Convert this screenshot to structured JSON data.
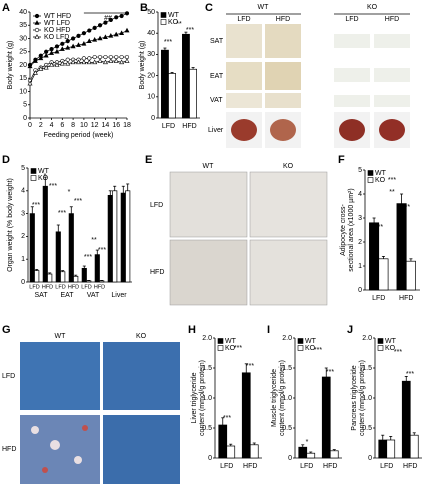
{
  "chart_data": [
    {
      "type": "line",
      "label": "A",
      "xlabel": "Feeding period (week)",
      "ylabel": "Body weight (g)",
      "x": [
        0,
        1,
        2,
        3,
        4,
        5,
        6,
        7,
        8,
        9,
        10,
        11,
        12,
        13,
        14,
        15,
        16,
        17,
        18
      ],
      "xlim": [
        0,
        18
      ],
      "xticks": [
        0,
        2,
        4,
        6,
        8,
        10,
        12,
        14,
        16,
        18
      ],
      "ylim": [
        0,
        40
      ],
      "yticks": [
        0,
        5,
        10,
        15,
        20,
        25,
        30,
        35,
        40
      ],
      "legend": "upper left",
      "annotations": [
        "##"
      ],
      "series": [
        {
          "name": "WT HFD",
          "color": "#000000",
          "marker": "circle",
          "values": [
            20,
            22,
            23.5,
            25,
            26,
            27,
            28,
            29,
            30,
            31,
            32,
            33,
            34,
            35,
            36,
            37,
            38,
            38.5,
            39.5
          ]
        },
        {
          "name": "WT LFD",
          "color": "#000000",
          "marker": "triangle",
          "values": [
            19.5,
            21.5,
            22.5,
            23.5,
            24.5,
            25,
            26,
            26.5,
            27,
            27.5,
            28,
            29,
            29.5,
            30,
            30.5,
            31,
            31.5,
            32,
            33
          ]
        },
        {
          "name": "KO HFD",
          "color": "#ffffff",
          "marker": "circle",
          "values": [
            14,
            18,
            19,
            20,
            21,
            21,
            21.5,
            22,
            22,
            22,
            22.5,
            22.5,
            23,
            23,
            23,
            23,
            23,
            23,
            23
          ]
        },
        {
          "name": "KO LFD",
          "color": "#ffffff",
          "marker": "triangle",
          "values": [
            13,
            17,
            18.5,
            19,
            20,
            20,
            20.5,
            20.5,
            21,
            21,
            21,
            21,
            21,
            21.5,
            21,
            21.5,
            21.5,
            21,
            21.5
          ]
        }
      ]
    },
    {
      "type": "bar",
      "label": "B",
      "ylabel": "Body weight (g)",
      "categories": [
        "LFD",
        "HFD"
      ],
      "ylim": [
        0,
        50
      ],
      "yticks": [
        0,
        10,
        20,
        30,
        40,
        50
      ],
      "legend": "upper left",
      "annotations": [
        "***",
        "**",
        "***"
      ],
      "series": [
        {
          "name": "WT",
          "color": "#000000",
          "values": [
            32,
            39.5
          ],
          "errors": [
            1,
            1
          ]
        },
        {
          "name": "KO",
          "color": "#ffffff",
          "values": [
            21,
            23
          ],
          "errors": [
            0.5,
            0.8
          ]
        }
      ]
    },
    {
      "type": "bar",
      "label": "D",
      "ylabel": "Organ weight (% body weight)",
      "categories": [
        "LFD",
        "HFD",
        "LFD",
        "HFD",
        "LFD",
        "HFD",
        null,
        null
      ],
      "groups": [
        "SAT",
        "EAT",
        "VAT",
        "Liver"
      ],
      "ylim": [
        0,
        5
      ],
      "yticks": [
        0,
        1,
        2,
        3,
        4,
        5
      ],
      "legend": "upper left",
      "annotations": [
        "***",
        "*",
        "***",
        "*",
        "***",
        "***",
        "**",
        "***",
        "***"
      ],
      "series": [
        {
          "name": "WT",
          "color": "#000000",
          "values": [
            3.0,
            4.2,
            2.2,
            3.0,
            0.6,
            1.2,
            3.8,
            3.9
          ],
          "errors": [
            0.3,
            0.4,
            0.3,
            0.3,
            0.1,
            0.2,
            0.2,
            0.3
          ]
        },
        {
          "name": "KO",
          "color": "#ffffff",
          "values": [
            0.5,
            0.35,
            0.45,
            0.25,
            0.05,
            0.05,
            4.0,
            4.0
          ],
          "errors": [
            0.05,
            0.05,
            0.05,
            0.05,
            0.02,
            0.02,
            0.2,
            0.3
          ]
        }
      ]
    },
    {
      "type": "bar",
      "label": "F",
      "ylabel": [
        "Adipocyte cross-",
        "sectional area (x1000 µm²)"
      ],
      "categories": [
        "LFD",
        "HFD"
      ],
      "ylim": [
        0,
        5
      ],
      "yticks": [
        0,
        1,
        2,
        3,
        4,
        5
      ],
      "legend": "upper left",
      "annotations": [
        "***",
        "***",
        "**",
        "***"
      ],
      "series": [
        {
          "name": "WT",
          "color": "#000000",
          "values": [
            2.8,
            3.6
          ],
          "errors": [
            0.2,
            0.4
          ]
        },
        {
          "name": "KO",
          "color": "#ffffff",
          "values": [
            1.3,
            1.2
          ],
          "errors": [
            0.1,
            0.1
          ]
        }
      ]
    },
    {
      "type": "bar",
      "label": "H",
      "ylabel": [
        "Liver triglyceride",
        "content (mmol/g protein)"
      ],
      "categories": [
        "LFD",
        "HFD"
      ],
      "ylim": [
        0,
        2
      ],
      "yticks": [
        0,
        0.5,
        {
          "value": 1,
          "label": "1.0"
        },
        1.5,
        {
          "value": 2,
          "label": "2.0"
        }
      ],
      "legend": "upper left",
      "annotations": [
        "***",
        "***",
        "***"
      ],
      "series": [
        {
          "name": "WT",
          "color": "#000000",
          "values": [
            0.55,
            1.42
          ],
          "errors": [
            0.12,
            0.15
          ]
        },
        {
          "name": "KO",
          "color": "#ffffff",
          "values": [
            0.2,
            0.22
          ],
          "errors": [
            0.03,
            0.03
          ]
        }
      ]
    },
    {
      "type": "bar",
      "label": "I",
      "ylabel": [
        "Muscle triglyceride",
        "content (mmol/g protein)"
      ],
      "categories": [
        "LFD",
        "HFD"
      ],
      "ylim": [
        0,
        2
      ],
      "yticks": [
        0,
        0.5,
        {
          "value": 1,
          "label": "1.0"
        },
        1.5,
        {
          "value": 2,
          "label": "2.0"
        }
      ],
      "legend": "upper left",
      "annotations": [
        "*",
        "***",
        "***"
      ],
      "series": [
        {
          "name": "WT",
          "color": "#000000",
          "values": [
            0.18,
            1.35
          ],
          "errors": [
            0.04,
            0.15
          ]
        },
        {
          "name": "KO",
          "color": "#ffffff",
          "values": [
            0.08,
            0.12
          ],
          "errors": [
            0.02,
            0.02
          ]
        }
      ]
    },
    {
      "type": "bar",
      "label": "J",
      "ylabel": [
        "Pancreas triglyceride",
        "content (mmol/g protein)"
      ],
      "categories": [
        "LFD",
        "HFD"
      ],
      "ylim": [
        0,
        2
      ],
      "yticks": [
        0,
        0.5,
        {
          "value": 1,
          "label": "1.0"
        },
        1.5,
        {
          "value": 2,
          "label": "2.0"
        }
      ],
      "legend": "upper left",
      "annotations": [
        "***",
        "***"
      ],
      "series": [
        {
          "name": "WT",
          "color": "#000000",
          "values": [
            0.3,
            1.28
          ],
          "errors": [
            0.08,
            0.08
          ]
        },
        {
          "name": "KO",
          "color": "#ffffff",
          "values": [
            0.3,
            0.38
          ],
          "errors": [
            0.06,
            0.04
          ]
        }
      ]
    }
  ],
  "image_panels": [
    {
      "label": "C",
      "columns": [
        "WT",
        "KO"
      ],
      "subcolumns": [
        "LFD",
        "HFD",
        "LFD",
        "HFD"
      ],
      "rows": [
        "SAT",
        "EAT",
        "VAT",
        "Liver"
      ]
    },
    {
      "label": "E",
      "columns": [
        "WT",
        "KO"
      ],
      "rows": [
        "LFD",
        "HFD"
      ]
    },
    {
      "label": "G",
      "columns": [
        "WT",
        "KO"
      ],
      "rows": [
        "LFD",
        "HFD"
      ]
    }
  ]
}
